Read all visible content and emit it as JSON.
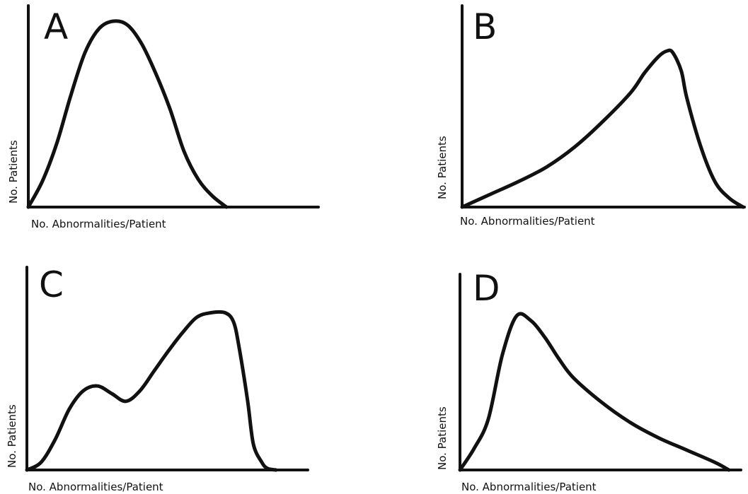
{
  "chart_data": [
    {
      "type": "line",
      "panel_label": "A",
      "xlabel": "No. Abnormalities/Patient",
      "ylabel": "No. Patients",
      "grid": false,
      "xlim": [
        0,
        1
      ],
      "ylim": [
        0,
        1
      ],
      "x": [
        0.0,
        0.05,
        0.1,
        0.15,
        0.2,
        0.25,
        0.3,
        0.35,
        0.4,
        0.45,
        0.5,
        0.55,
        0.6,
        0.65,
        0.7
      ],
      "values": [
        0.0,
        0.14,
        0.34,
        0.6,
        0.83,
        0.96,
        1.0,
        0.98,
        0.88,
        0.72,
        0.53,
        0.3,
        0.15,
        0.06,
        0.0
      ]
    },
    {
      "type": "line",
      "panel_label": "B",
      "xlabel": "No. Abnormalities/Patient",
      "ylabel": "No. Patients",
      "grid": false,
      "xlim": [
        0,
        1
      ],
      "ylim": [
        0,
        1
      ],
      "x": [
        0.0,
        0.1,
        0.2,
        0.3,
        0.4,
        0.5,
        0.6,
        0.65,
        0.7,
        0.73,
        0.75,
        0.78,
        0.8,
        0.85,
        0.9,
        0.95,
        1.0
      ],
      "values": [
        0.0,
        0.07,
        0.14,
        0.22,
        0.33,
        0.47,
        0.63,
        0.74,
        0.83,
        0.86,
        0.85,
        0.75,
        0.6,
        0.33,
        0.14,
        0.05,
        0.0
      ]
    },
    {
      "type": "line",
      "panel_label": "C",
      "xlabel": "No. Abnormalities/Patient",
      "ylabel": "No. Patients",
      "grid": false,
      "xlim": [
        0,
        1
      ],
      "ylim": [
        0,
        1
      ],
      "x": [
        0.0,
        0.05,
        0.1,
        0.15,
        0.2,
        0.25,
        0.3,
        0.35,
        0.4,
        0.45,
        0.5,
        0.55,
        0.6,
        0.65,
        0.7,
        0.73,
        0.75,
        0.78,
        0.8,
        0.83,
        0.85,
        0.88
      ],
      "values": [
        0.0,
        0.05,
        0.2,
        0.4,
        0.52,
        0.55,
        0.5,
        0.45,
        0.52,
        0.65,
        0.78,
        0.9,
        1.0,
        1.03,
        1.03,
        0.97,
        0.8,
        0.45,
        0.17,
        0.05,
        0.01,
        0.0
      ]
    },
    {
      "type": "line",
      "panel_label": "D",
      "xlabel": "No. Abnormalities/Patient",
      "ylabel": "No. Patients",
      "grid": false,
      "xlim": [
        0,
        1
      ],
      "ylim": [
        0,
        1
      ],
      "x": [
        0.0,
        0.05,
        0.1,
        0.15,
        0.2,
        0.25,
        0.3,
        0.35,
        0.4,
        0.5,
        0.6,
        0.7,
        0.8,
        0.9,
        0.95
      ],
      "values": [
        0.0,
        0.14,
        0.33,
        0.75,
        1.0,
        0.97,
        0.86,
        0.72,
        0.6,
        0.44,
        0.31,
        0.21,
        0.13,
        0.05,
        0.0
      ]
    }
  ]
}
